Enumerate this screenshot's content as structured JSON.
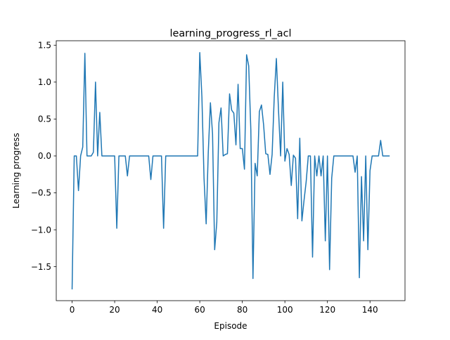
{
  "chart_data": {
    "type": "line",
    "title": "learning_progress_rl_acl",
    "xlabel": "Episode",
    "ylabel": "Learning progress",
    "xlim": [
      -7.45,
      156.45
    ],
    "ylim": [
      -1.96,
      1.56
    ],
    "xticks": [
      0,
      20,
      40,
      60,
      80,
      100,
      120,
      140
    ],
    "yticks": [
      -1.5,
      -1.0,
      -0.5,
      0.0,
      0.5,
      1.0,
      1.5
    ],
    "x_tick_labels": [
      "0",
      "20",
      "40",
      "60",
      "80",
      "100",
      "120",
      "140"
    ],
    "y_tick_labels": [
      "−1.5",
      "−1.0",
      "−0.5",
      "0.0",
      "0.5",
      "1.0",
      "1.5"
    ],
    "grid": false,
    "legend": "none",
    "series": [
      {
        "color": "#1f77b4",
        "x": [
          0,
          1,
          2,
          3,
          4,
          5,
          6,
          7,
          8,
          9,
          10,
          11,
          12,
          13,
          14,
          15,
          16,
          17,
          18,
          19,
          20,
          21,
          22,
          23,
          24,
          25,
          26,
          27,
          28,
          29,
          30,
          31,
          32,
          33,
          34,
          35,
          36,
          37,
          38,
          39,
          40,
          41,
          42,
          43,
          44,
          45,
          46,
          47,
          48,
          49,
          50,
          51,
          52,
          53,
          54,
          55,
          56,
          57,
          58,
          59,
          60,
          61,
          62,
          63,
          64,
          65,
          66,
          67,
          68,
          69,
          70,
          71,
          72,
          73,
          74,
          75,
          76,
          77,
          78,
          79,
          80,
          81,
          82,
          83,
          84,
          85,
          86,
          87,
          88,
          89,
          90,
          91,
          92,
          93,
          94,
          95,
          96,
          97,
          98,
          99,
          100,
          101,
          102,
          103,
          104,
          105,
          106,
          107,
          108,
          109,
          110,
          111,
          112,
          113,
          114,
          115,
          116,
          117,
          118,
          119,
          120,
          121,
          122,
          123,
          124,
          125,
          126,
          127,
          128,
          129,
          130,
          131,
          132,
          133,
          134,
          135,
          136,
          137,
          138,
          139,
          140,
          141,
          142,
          143,
          144,
          145,
          146,
          147,
          148,
          149
        ],
        "y": [
          -1.8,
          0,
          0,
          -0.47,
          0,
          0.12,
          1.39,
          0,
          0,
          0,
          0.05,
          1.0,
          0,
          0.59,
          0,
          0,
          0,
          0,
          0,
          0,
          0,
          -0.98,
          0,
          0,
          0,
          0,
          -0.27,
          0,
          0,
          0,
          0,
          0,
          0,
          0,
          0,
          0,
          0,
          -0.32,
          0,
          0,
          0,
          0,
          0,
          -0.98,
          0,
          0,
          0,
          0,
          0,
          0,
          0,
          0,
          0,
          0,
          0,
          0,
          0,
          0,
          0,
          0,
          1.4,
          0.8,
          -0.3,
          -0.92,
          0.05,
          0.72,
          0.3,
          -1.27,
          -0.9,
          0.45,
          0.65,
          0,
          0.02,
          0.03,
          0.84,
          0.62,
          0.58,
          0.15,
          0.97,
          0.1,
          0.1,
          -0.18,
          1.37,
          1.22,
          0.35,
          -1.66,
          -0.1,
          -0.27,
          0.6,
          0.69,
          0.42,
          0.03,
          0.02,
          -0.25,
          0.02,
          0.8,
          1.32,
          0.62,
          0,
          1.0,
          -0.07,
          0.1,
          0.02,
          -0.4,
          0.01,
          -0.03,
          -0.85,
          0.24,
          -0.88,
          -0.6,
          -0.35,
          0,
          0,
          -1.37,
          0,
          -0.27,
          0,
          -0.27,
          0,
          -1.15,
          0,
          -1.54,
          -0.3,
          0,
          0,
          0,
          0,
          0,
          0,
          0,
          0,
          0,
          0,
          -0.22,
          0,
          -1.65,
          -0.28,
          -1.15,
          0,
          -1.27,
          -0.2,
          0,
          0,
          0,
          0,
          0.21,
          0,
          0,
          0,
          0
        ]
      }
    ]
  }
}
